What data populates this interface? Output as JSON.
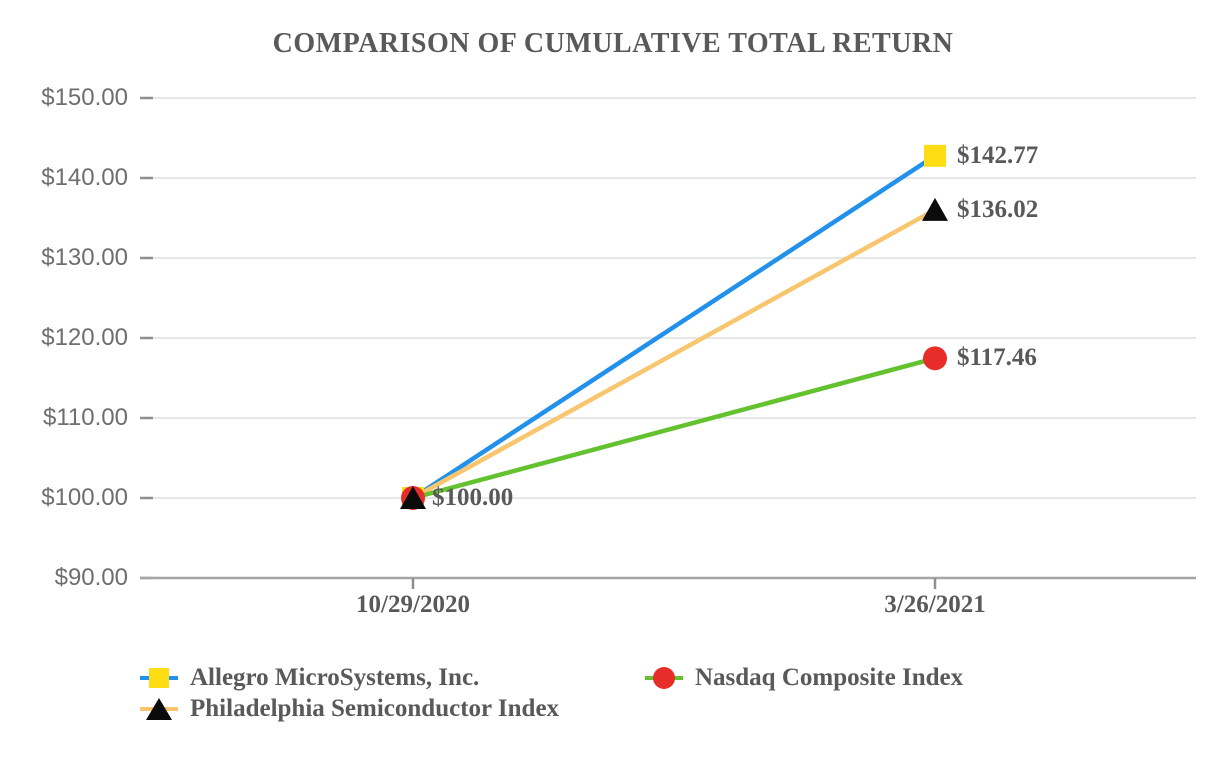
{
  "chart_data": {
    "type": "line",
    "title": "COMPARISON OF CUMULATIVE TOTAL RETURN",
    "categories": [
      "10/29/2020",
      "3/26/2021"
    ],
    "ylim": [
      90,
      150
    ],
    "grid": "horizontal",
    "legend_position": "bottom",
    "y_ticks": {
      "values": [
        90,
        100,
        110,
        120,
        130,
        140,
        150
      ],
      "labels": [
        "$90.00",
        "$100.00",
        "$110.00",
        "$120.00",
        "$130.00",
        "$140.00",
        "$150.00"
      ]
    },
    "start_label": "$100.00",
    "series": [
      {
        "name": "Allegro MicroSystems, Inc.",
        "values": [
          100.0,
          142.77
        ],
        "end_label": "$142.77",
        "marker": "square",
        "marker_color": "#FFDD14",
        "line_color": "#2191EB"
      },
      {
        "name": "Philadelphia Semiconductor Index",
        "values": [
          100.0,
          136.02
        ],
        "end_label": "$136.02",
        "marker": "triangle",
        "marker_color": "#0B0B0B",
        "line_color": "#F7C66F"
      },
      {
        "name": "Nasdaq Composite Index",
        "values": [
          100.0,
          117.46
        ],
        "end_label": "$117.46",
        "marker": "circle",
        "marker_color": "#E62D2A",
        "line_color": "#63C22E"
      }
    ],
    "colors": {
      "title_text": "#595959",
      "axis_label_text": "#6E6E6E",
      "data_label_text": "#595959",
      "gridline": "#E7E7E7",
      "axis_line": "#A6A6A6",
      "tick": "#8F8F8F",
      "background": "#FFFFFF"
    }
  }
}
